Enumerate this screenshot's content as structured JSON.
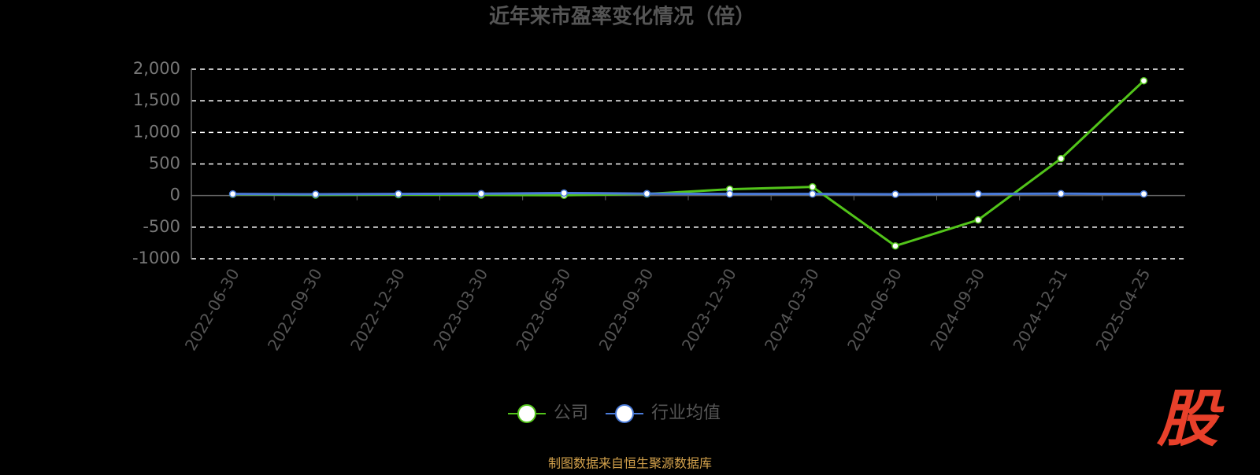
{
  "chart_data": {
    "type": "line",
    "title": "近年来市盈率变化情况（倍）",
    "categories": [
      "2022-06-30",
      "2022-09-30",
      "2022-12-30",
      "2023-03-30",
      "2023-06-30",
      "2023-09-30",
      "2023-12-30",
      "2024-03-30",
      "2024-06-30",
      "2024-09-30",
      "2024-12-31",
      "2025-04-25"
    ],
    "series": [
      {
        "name": "公司",
        "color": "#52c41a",
        "values": [
          20,
          10,
          15,
          10,
          5,
          25,
          100,
          137,
          -797,
          -386,
          585,
          1817
        ]
      },
      {
        "name": "行业均值",
        "color": "#4a7bd9",
        "values": [
          25,
          20,
          25,
          30,
          40,
          30,
          25,
          25,
          20,
          25,
          30,
          25
        ]
      }
    ],
    "ylim": [
      -1000,
      2000
    ],
    "yticks": [
      -1000,
      -500,
      0,
      500,
      {
        "value": 1000,
        "label": "1,000"
      },
      {
        "value": 1500,
        "label": "1,500"
      },
      {
        "value": 2000,
        "label": "2,000"
      }
    ],
    "grid": true,
    "footer": "制图数据来自恒生聚源数据库",
    "logo": "股"
  }
}
